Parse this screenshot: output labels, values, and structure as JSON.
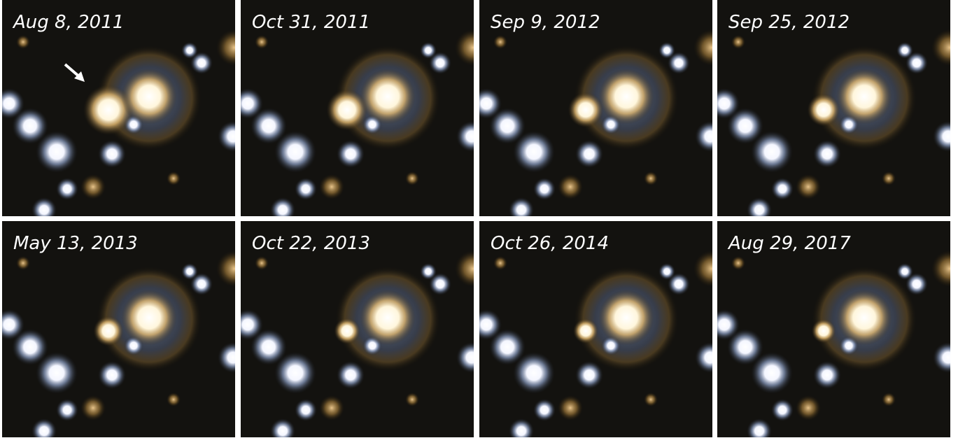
{
  "panels": [
    {
      "label": "Aug 8, 2011"
    },
    {
      "label": "Oct 31, 2011"
    },
    {
      "label": "Sep 9, 2012"
    },
    {
      "label": "Sep 25, 2012"
    },
    {
      "label": "May 13, 2013"
    },
    {
      "label": "Oct 22, 2013"
    },
    {
      "label": "Oct 26, 2014"
    },
    {
      "label": "Aug 29, 2017"
    }
  ]
}
